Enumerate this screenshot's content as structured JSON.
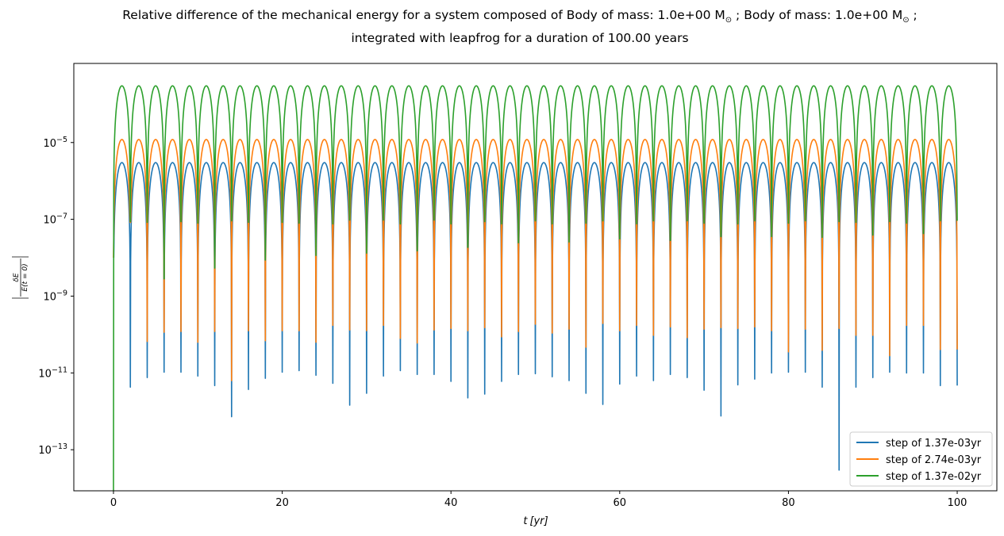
{
  "chart_data": {
    "type": "line",
    "title_line1": "Relative difference of the mechanical energy for a system composed of Body of mass: 1.0e+00 M",
    "title_sun_symbol": "⊙",
    "title_line1_mid": " ; Body of mass: 1.0e+00 M",
    "title_line1_end": " ;",
    "title_line2": "integrated with leapfrog for a duration of 100.00 years",
    "xlabel": "t [yr]",
    "xlabel_t": "t",
    "xlabel_unit": "[yr]",
    "ylabel": "|δE_m / E_m(t=0)|",
    "ylabel_num": "δE",
    "ylabel_den": "E",
    "ylabel_den_tail": "(t = 0)",
    "yscale": "log",
    "xlim": [
      -4.7,
      104.7
    ],
    "ylim_log10": [
      -14.07,
      -2.94
    ],
    "grid": false,
    "x_ticks": [
      0,
      20,
      40,
      60,
      80,
      100
    ],
    "x_tick_labels": [
      "0",
      "20",
      "40",
      "60",
      "80",
      "100"
    ],
    "y_ticks_log10": [
      -13,
      -11,
      -9,
      -7,
      -5
    ],
    "y_tick_labels": [
      {
        "base": "10",
        "exp": "−13"
      },
      {
        "base": "10",
        "exp": "−11"
      },
      {
        "base": "10",
        "exp": "−9"
      },
      {
        "base": "10",
        "exp": "−7"
      },
      {
        "base": "10",
        "exp": "−5"
      }
    ],
    "legend_position": "lower right",
    "oscillation_period_yr": 2,
    "series": [
      {
        "name": "step of 1.37e-03yr",
        "color": "#1f77b4",
        "peak": 3e-06,
        "end_value": 1.6e-07,
        "start_dip_log10": -8.0,
        "dip_times": [
          2,
          4,
          6,
          8,
          10,
          12,
          14,
          16,
          18,
          20,
          22,
          24,
          26,
          28,
          30,
          32,
          34,
          36,
          38,
          40,
          42,
          44,
          46,
          48,
          50,
          52,
          54,
          56,
          58,
          60,
          62,
          64,
          66,
          68,
          70,
          72,
          74,
          76,
          78,
          80,
          82,
          84,
          86,
          88,
          90,
          92,
          94,
          96,
          98
        ],
        "dip_log10": [
          -11.37,
          -11.12,
          -10.98,
          -10.98,
          -11.08,
          -11.33,
          -12.14,
          -11.43,
          -11.14,
          -10.98,
          -10.94,
          -11.06,
          -11.27,
          -11.84,
          -11.53,
          -11.08,
          -10.94,
          -11.04,
          -11.04,
          -11.22,
          -11.65,
          -11.55,
          -11.22,
          -11.04,
          -11.02,
          -11.1,
          -11.2,
          -11.53,
          -11.82,
          -11.29,
          -11.08,
          -11.2,
          -11.04,
          -11.12,
          -11.45,
          -12.12,
          -11.31,
          -11.16,
          -11.0,
          -10.98,
          -10.98,
          -11.37,
          -13.53,
          -11.37,
          -11.12,
          -10.98,
          -11.0,
          -11.0,
          -11.33
        ]
      },
      {
        "name": "step of 2.74e-03yr",
        "color": "#ff7f0e",
        "peak": 1.2e-05,
        "end_value": 6e-07,
        "start_dip_log10": -8.0,
        "dip_times": [
          2,
          4,
          6,
          8,
          10,
          12,
          14,
          16,
          18,
          20,
          22,
          24,
          26,
          28,
          30,
          32,
          34,
          36,
          38,
          40,
          42,
          44,
          46,
          48,
          50,
          52,
          54,
          56,
          58,
          60,
          62,
          64,
          66,
          68,
          70,
          72,
          74,
          76,
          78,
          80,
          82,
          84,
          86,
          88,
          90,
          92,
          94,
          96,
          98
        ],
        "dip_log10": [
          -7.08,
          -10.18,
          -9.94,
          -9.92,
          -10.2,
          -9.92,
          -11.2,
          -9.9,
          -10.16,
          -9.9,
          -9.9,
          -10.2,
          -9.76,
          -9.88,
          -9.9,
          -9.76,
          -10.1,
          -10.22,
          -9.88,
          -9.84,
          -9.9,
          -9.82,
          -10.06,
          -9.92,
          -9.73,
          -9.96,
          -9.86,
          -10.33,
          -9.71,
          -9.9,
          -9.76,
          -10.02,
          -9.8,
          -10.08,
          -9.86,
          -9.82,
          -9.84,
          -9.8,
          -9.9,
          -10.45,
          -9.86,
          -10.41,
          -9.84,
          -10.02,
          -10.02,
          -10.55,
          -9.76,
          -9.76,
          -10.39
        ]
      },
      {
        "name": "step of 1.37e-02yr",
        "color": "#2ca02c",
        "peak": 0.0003,
        "end_value": 2e-05,
        "start_dip_log10": -14.07,
        "dip_times": [
          2,
          4,
          6,
          8,
          10,
          12,
          14,
          16,
          18,
          20,
          22,
          24,
          26,
          28,
          30,
          32,
          34,
          36,
          38,
          40,
          42,
          44,
          46,
          48,
          50,
          52,
          54,
          56,
          58,
          60,
          62,
          64,
          66,
          68,
          70,
          72,
          74,
          76,
          78,
          80,
          82,
          84,
          86,
          88,
          90,
          92,
          94,
          96,
          98
        ],
        "dip_log10": [
          -7.06,
          -7.08,
          -8.55,
          -7.06,
          -7.1,
          -8.27,
          -7.04,
          -7.08,
          -8.06,
          -7.08,
          -7.1,
          -7.94,
          -7.12,
          -7.02,
          -7.88,
          -7.02,
          -7.12,
          -7.82,
          -7.02,
          -7.12,
          -7.73,
          -7.06,
          -7.12,
          -7.61,
          -7.04,
          -7.12,
          -7.59,
          -7.1,
          -7.04,
          -7.51,
          -7.12,
          -7.04,
          -7.55,
          -7.04,
          -7.1,
          -7.45,
          -7.12,
          -7.04,
          -7.45,
          -7.1,
          -7.04,
          -7.47,
          -7.06,
          -7.08,
          -7.41,
          -7.06,
          -7.1,
          -7.37,
          -7.04
        ]
      }
    ]
  }
}
